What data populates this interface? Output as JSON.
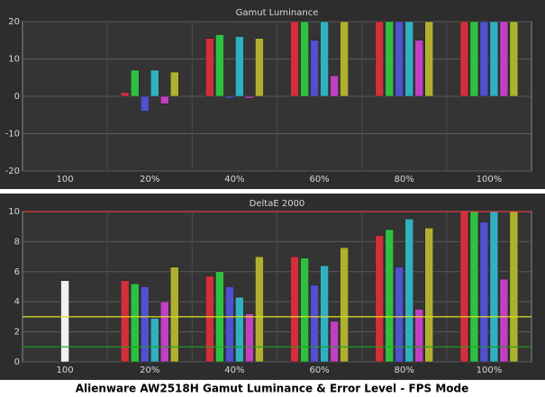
{
  "chart_data": [
    {
      "type": "bar",
      "title": "Gamut Luminance",
      "categories": [
        "100",
        "20%",
        "40%",
        "60%",
        "80%",
        "100%"
      ],
      "series": [
        {
          "color": "#f0f0f0",
          "values": [
            null,
            null,
            null,
            null,
            null,
            null
          ]
        },
        {
          "color": "#d0303a",
          "values": [
            null,
            1,
            15.5,
            20,
            20,
            20
          ]
        },
        {
          "color": "#30c040",
          "values": [
            null,
            7,
            16.5,
            20,
            20,
            20
          ]
        },
        {
          "color": "#5050d0",
          "values": [
            null,
            -4,
            -0.5,
            15,
            20,
            20
          ]
        },
        {
          "color": "#30b0c0",
          "values": [
            null,
            7,
            16,
            20,
            20,
            20
          ]
        },
        {
          "color": "#c040c0",
          "values": [
            null,
            -2,
            -0.5,
            5.5,
            15,
            20
          ]
        },
        {
          "color": "#b0b030",
          "values": [
            null,
            6.5,
            15.5,
            20,
            20,
            20
          ]
        }
      ],
      "ylim": [
        -20,
        20
      ],
      "yticks": [
        -20,
        -10,
        0,
        10,
        20
      ],
      "grid": true
    },
    {
      "type": "bar",
      "title": "DeltaE 2000",
      "categories": [
        "100",
        "20%",
        "40%",
        "60%",
        "80%",
        "100%"
      ],
      "series": [
        {
          "color": "#f0f0f0",
          "values": [
            5.4,
            null,
            null,
            null,
            null,
            null
          ]
        },
        {
          "color": "#d0303a",
          "values": [
            null,
            5.4,
            5.7,
            7.0,
            8.4,
            10
          ]
        },
        {
          "color": "#30c040",
          "values": [
            null,
            5.2,
            6.0,
            6.9,
            8.8,
            10
          ]
        },
        {
          "color": "#5050d0",
          "values": [
            null,
            5.0,
            5.0,
            5.1,
            6.3,
            9.3
          ]
        },
        {
          "color": "#30b0c0",
          "values": [
            null,
            2.9,
            4.3,
            6.4,
            9.5,
            10
          ]
        },
        {
          "color": "#c040c0",
          "values": [
            null,
            4.0,
            3.2,
            2.7,
            3.5,
            5.5
          ]
        },
        {
          "color": "#b0b030",
          "values": [
            null,
            6.3,
            7.0,
            7.6,
            8.9,
            10
          ]
        }
      ],
      "reference_lines": [
        {
          "value": 10,
          "color": "#e04040"
        },
        {
          "value": 3,
          "color": "#e0e020"
        },
        {
          "value": 1,
          "color": "#20a020"
        }
      ],
      "ylim": [
        0,
        10
      ],
      "yticks": [
        0,
        2,
        4,
        6,
        8,
        10
      ],
      "grid": true
    }
  ],
  "caption": "Alienware AW2518H Gamut Luminance & Error Level - FPS Mode"
}
